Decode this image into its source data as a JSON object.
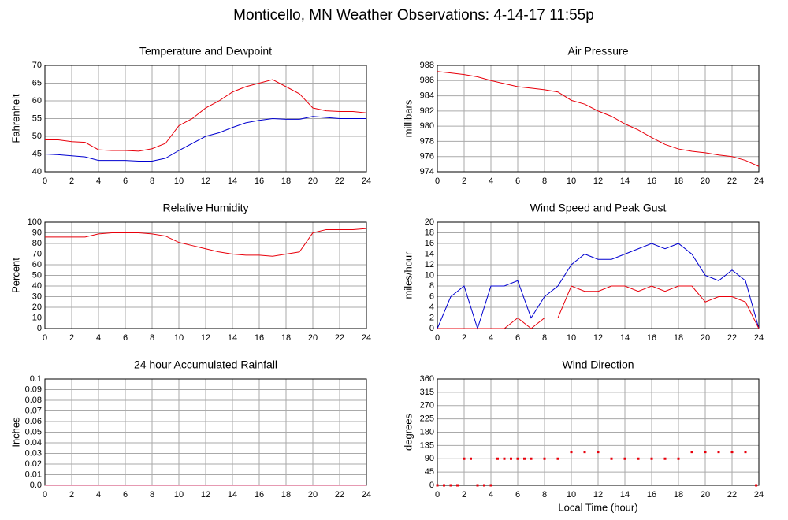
{
  "title": "Monticello, MN Weather Observations: 4-14-17 11:55p",
  "chart_data": [
    {
      "type": "line",
      "title": "Temperature and Dewpoint",
      "y_label": "Fahrenheit",
      "x": [
        0,
        1,
        2,
        3,
        4,
        5,
        6,
        7,
        8,
        9,
        10,
        11,
        12,
        13,
        14,
        15,
        16,
        17,
        18,
        19,
        20,
        21,
        22,
        23,
        24
      ],
      "series": [
        {
          "color": "#e8000b",
          "values": [
            49,
            49,
            48.5,
            48.3,
            46.2,
            46,
            46,
            45.8,
            46.5,
            48,
            53,
            55,
            58,
            60,
            62.5,
            64,
            65,
            66,
            64,
            62,
            58,
            57.2,
            57,
            57,
            56.6
          ]
        },
        {
          "color": "#0000d0",
          "values": [
            45,
            44.8,
            44.5,
            44.2,
            43.2,
            43.2,
            43.2,
            43,
            43,
            43.8,
            46,
            48,
            50,
            51,
            52.5,
            53.8,
            54.5,
            55,
            54.8,
            54.8,
            55.6,
            55.3,
            55,
            55,
            55
          ]
        }
      ],
      "xlim": [
        0,
        24
      ],
      "xticks": [
        0,
        2,
        4,
        6,
        8,
        10,
        12,
        14,
        16,
        18,
        20,
        22,
        24
      ],
      "ylim": [
        40,
        70
      ],
      "yticks": [
        40,
        45,
        50,
        55,
        60,
        65,
        70
      ],
      "grid": true
    },
    {
      "type": "line",
      "title": "Air Pressure",
      "y_label": "millibars",
      "x": [
        0,
        1,
        2,
        3,
        4,
        5,
        6,
        7,
        8,
        9,
        10,
        11,
        12,
        13,
        14,
        15,
        16,
        17,
        18,
        19,
        20,
        21,
        22,
        23,
        24
      ],
      "series": [
        {
          "color": "#e8000b",
          "values": [
            987.2,
            987,
            986.8,
            986.5,
            986,
            985.6,
            985.2,
            985,
            984.8,
            984.5,
            983.4,
            982.9,
            982,
            981.3,
            980.3,
            979.5,
            978.5,
            977.6,
            977,
            976.7,
            976.5,
            976.2,
            976,
            975.5,
            974.7
          ]
        }
      ],
      "xlim": [
        0,
        24
      ],
      "xticks": [
        0,
        2,
        4,
        6,
        8,
        10,
        12,
        14,
        16,
        18,
        20,
        22,
        24
      ],
      "ylim": [
        974,
        988
      ],
      "yticks": [
        974,
        976,
        978,
        980,
        982,
        984,
        986,
        988
      ],
      "grid": true
    },
    {
      "type": "line",
      "title": "Relative Humidity",
      "y_label": "Percent",
      "x": [
        0,
        1,
        2,
        3,
        4,
        5,
        6,
        7,
        8,
        9,
        10,
        11,
        12,
        13,
        14,
        15,
        16,
        17,
        18,
        19,
        20,
        21,
        22,
        23,
        24
      ],
      "series": [
        {
          "color": "#e8000b",
          "values": [
            86,
            86,
            86,
            86,
            89,
            90,
            90,
            90,
            89,
            87,
            81,
            78,
            75,
            72,
            70,
            69,
            69,
            68,
            70,
            72,
            90,
            93,
            93,
            93,
            94
          ]
        }
      ],
      "xlim": [
        0,
        24
      ],
      "xticks": [
        0,
        2,
        4,
        6,
        8,
        10,
        12,
        14,
        16,
        18,
        20,
        22,
        24
      ],
      "ylim": [
        0,
        100
      ],
      "yticks": [
        0,
        10,
        20,
        30,
        40,
        50,
        60,
        70,
        80,
        90,
        100
      ],
      "grid": true
    },
    {
      "type": "line",
      "title": "Wind Speed and Peak Gust",
      "y_label": "miles/hour",
      "x": [
        0,
        1,
        2,
        3,
        4,
        5,
        6,
        7,
        8,
        9,
        10,
        11,
        12,
        13,
        14,
        15,
        16,
        17,
        18,
        19,
        20,
        21,
        22,
        23,
        24
      ],
      "series": [
        {
          "color": "#0000d0",
          "values": [
            0,
            6,
            8,
            0,
            8,
            8,
            9,
            2,
            6,
            8,
            12,
            14,
            13,
            13,
            14,
            15,
            16,
            15,
            16,
            14,
            10,
            9,
            11,
            9,
            0
          ]
        },
        {
          "color": "#e8000b",
          "values": [
            0,
            0,
            0,
            0,
            0,
            0,
            2,
            0,
            2,
            2,
            8,
            7,
            7,
            8,
            8,
            7,
            8,
            7,
            8,
            8,
            5,
            6,
            6,
            5,
            0
          ]
        }
      ],
      "xlim": [
        0,
        24
      ],
      "xticks": [
        0,
        2,
        4,
        6,
        8,
        10,
        12,
        14,
        16,
        18,
        20,
        22,
        24
      ],
      "ylim": [
        0,
        20
      ],
      "yticks": [
        0,
        2,
        4,
        6,
        8,
        10,
        12,
        14,
        16,
        18,
        20
      ],
      "grid": true
    },
    {
      "type": "line",
      "title": "24 hour Accumulated Rainfall",
      "y_label": "Inches",
      "x": [
        0,
        24
      ],
      "series": [
        {
          "color": "#cc3366",
          "values": [
            0,
            0
          ]
        }
      ],
      "xlim": [
        0,
        24
      ],
      "xticks": [
        0,
        2,
        4,
        6,
        8,
        10,
        12,
        14,
        16,
        18,
        20,
        22,
        24
      ],
      "ylim": [
        0,
        0.1
      ],
      "yticks": [
        {
          "value": 0,
          "label": "0.0"
        },
        0.01,
        0.02,
        0.03,
        0.04,
        0.05,
        0.06,
        0.07,
        0.08,
        0.09,
        0.1
      ],
      "grid": true
    },
    {
      "type": "scatter",
      "title": "Wind Direction",
      "y_label": "degrees",
      "x_label": "Local Time (hour)",
      "x": [
        0,
        0.5,
        1,
        1.5,
        2,
        2.5,
        3,
        3.5,
        4,
        4.5,
        5,
        5.5,
        6,
        6.5,
        7,
        8,
        9,
        10,
        11,
        12,
        13,
        14,
        15,
        16,
        17,
        18,
        19,
        20,
        21,
        22,
        23,
        23.8
      ],
      "series": [
        {
          "color": "#e8000b",
          "values": [
            0,
            0,
            0,
            0,
            90,
            90,
            0,
            0,
            0,
            90,
            90,
            90,
            90,
            90,
            90,
            90,
            90,
            113,
            113,
            113,
            90,
            90,
            90,
            90,
            90,
            90,
            113,
            113,
            113,
            113,
            113,
            0
          ]
        }
      ],
      "xlim": [
        0,
        24
      ],
      "xticks": [
        0,
        2,
        4,
        6,
        8,
        10,
        12,
        14,
        16,
        18,
        20,
        22,
        24
      ],
      "ylim": [
        0,
        360
      ],
      "yticks": [
        0,
        45,
        90,
        135,
        180,
        225,
        270,
        315,
        360
      ],
      "grid": true
    }
  ]
}
